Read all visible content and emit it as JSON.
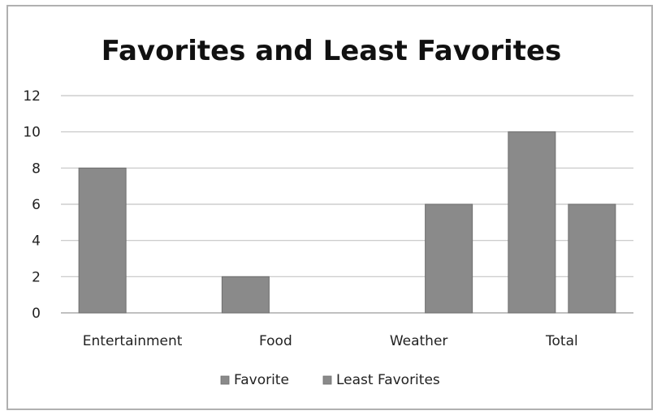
{
  "chart_data": {
    "type": "bar",
    "title": "Favorites and Least Favorites",
    "xlabel": "",
    "ylabel": "",
    "categories": [
      "Entertainment",
      "Food",
      "Weather",
      "Total"
    ],
    "series": [
      {
        "name": "Favorite",
        "values": [
          8,
          2,
          0,
          10
        ]
      },
      {
        "name": "Least Favorites",
        "values": [
          0,
          0,
          6,
          6
        ]
      }
    ],
    "ylim": [
      0,
      12
    ],
    "yticks": [
      0,
      2,
      4,
      6,
      8,
      10,
      12
    ],
    "grid": true,
    "legend_position": "bottom",
    "colors": {
      "bar": "#8a8a8a",
      "bar_edge": "#6e6e6e",
      "grid": "#c4c4c4",
      "axis": "#9a9a9a",
      "text": "#222222"
    }
  }
}
